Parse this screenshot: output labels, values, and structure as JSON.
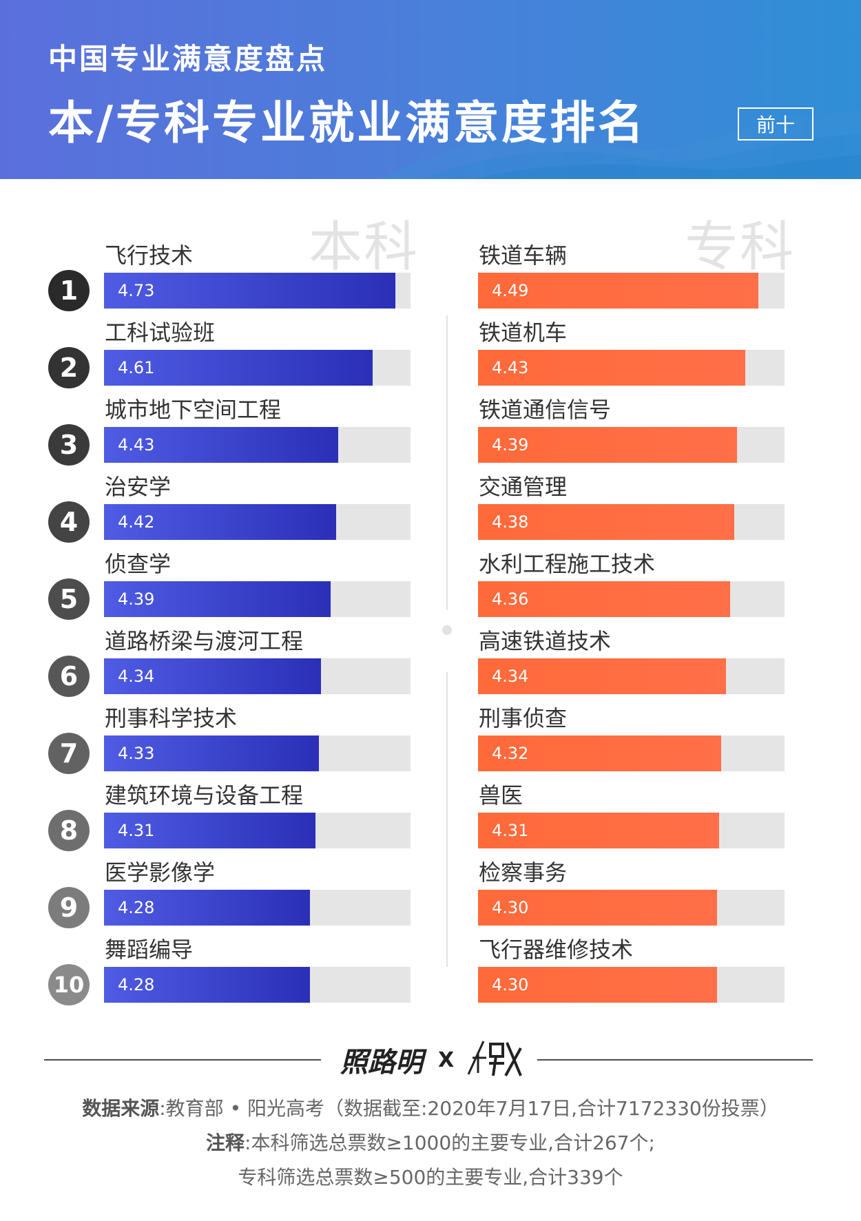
{
  "header": {
    "subtitle": "中国专业满意度盘点",
    "title": "本/专科专业就业满意度排名",
    "badge": "前十"
  },
  "sections": {
    "left_label": "本科",
    "right_label": "专科"
  },
  "colors": {
    "header_start": "#5b6fdc",
    "header_end": "#2f8fd6",
    "left_bar": "#2b2fb8",
    "right_bar": "#ff6a3a",
    "track": "#e5e5e5"
  },
  "chart_data": [
    {
      "type": "bar",
      "orientation": "horizontal",
      "title": "本科",
      "xlim": [
        0,
        5
      ],
      "ranks": [
        1,
        2,
        3,
        4,
        5,
        6,
        7,
        8,
        9,
        10
      ],
      "categories": [
        "飞行技术",
        "工科试验班",
        "城市地下空间工程",
        "治安学",
        "侦查学",
        "道路桥梁与渡河工程",
        "刑事科学技术",
        "建筑环境与设备工程",
        "医学影像学",
        "舞蹈编导"
      ],
      "values": [
        4.73,
        4.61,
        4.43,
        4.42,
        4.39,
        4.34,
        4.33,
        4.31,
        4.28,
        4.28
      ],
      "labels": [
        "4.73",
        "4.61",
        "4.43",
        "4.42",
        "4.39",
        "4.34",
        "4.33",
        "4.31",
        "4.28",
        "4.28"
      ]
    },
    {
      "type": "bar",
      "orientation": "horizontal",
      "title": "专科",
      "xlim": [
        0,
        5
      ],
      "ranks": [
        1,
        2,
        3,
        4,
        5,
        6,
        7,
        8,
        9,
        10
      ],
      "categories": [
        "铁道车辆",
        "铁道机车",
        "铁道通信信号",
        "交通管理",
        "水利工程施工技术",
        "高速铁道技术",
        "刑事侦查",
        "兽医",
        "检察事务",
        "飞行器维修技术"
      ],
      "values": [
        4.49,
        4.43,
        4.39,
        4.38,
        4.36,
        4.34,
        4.32,
        4.31,
        4.3,
        4.3
      ],
      "labels": [
        "4.49",
        "4.43",
        "4.39",
        "4.38",
        "4.36",
        "4.34",
        "4.32",
        "4.31",
        "4.30",
        "4.30"
      ]
    }
  ],
  "footer": {
    "brand": "照路明",
    "x": "X",
    "source_label": "数据来源",
    "source_text": ":教育部 • 阳光高考（数据截至:2020年7月17日,合计7172330份投票）",
    "note_label": "注释",
    "note_text": ":本科筛选总票数≥1000的主要专业,合计267个;",
    "note_text2": "专科筛选总票数≥500的主要专业,合计339个"
  }
}
